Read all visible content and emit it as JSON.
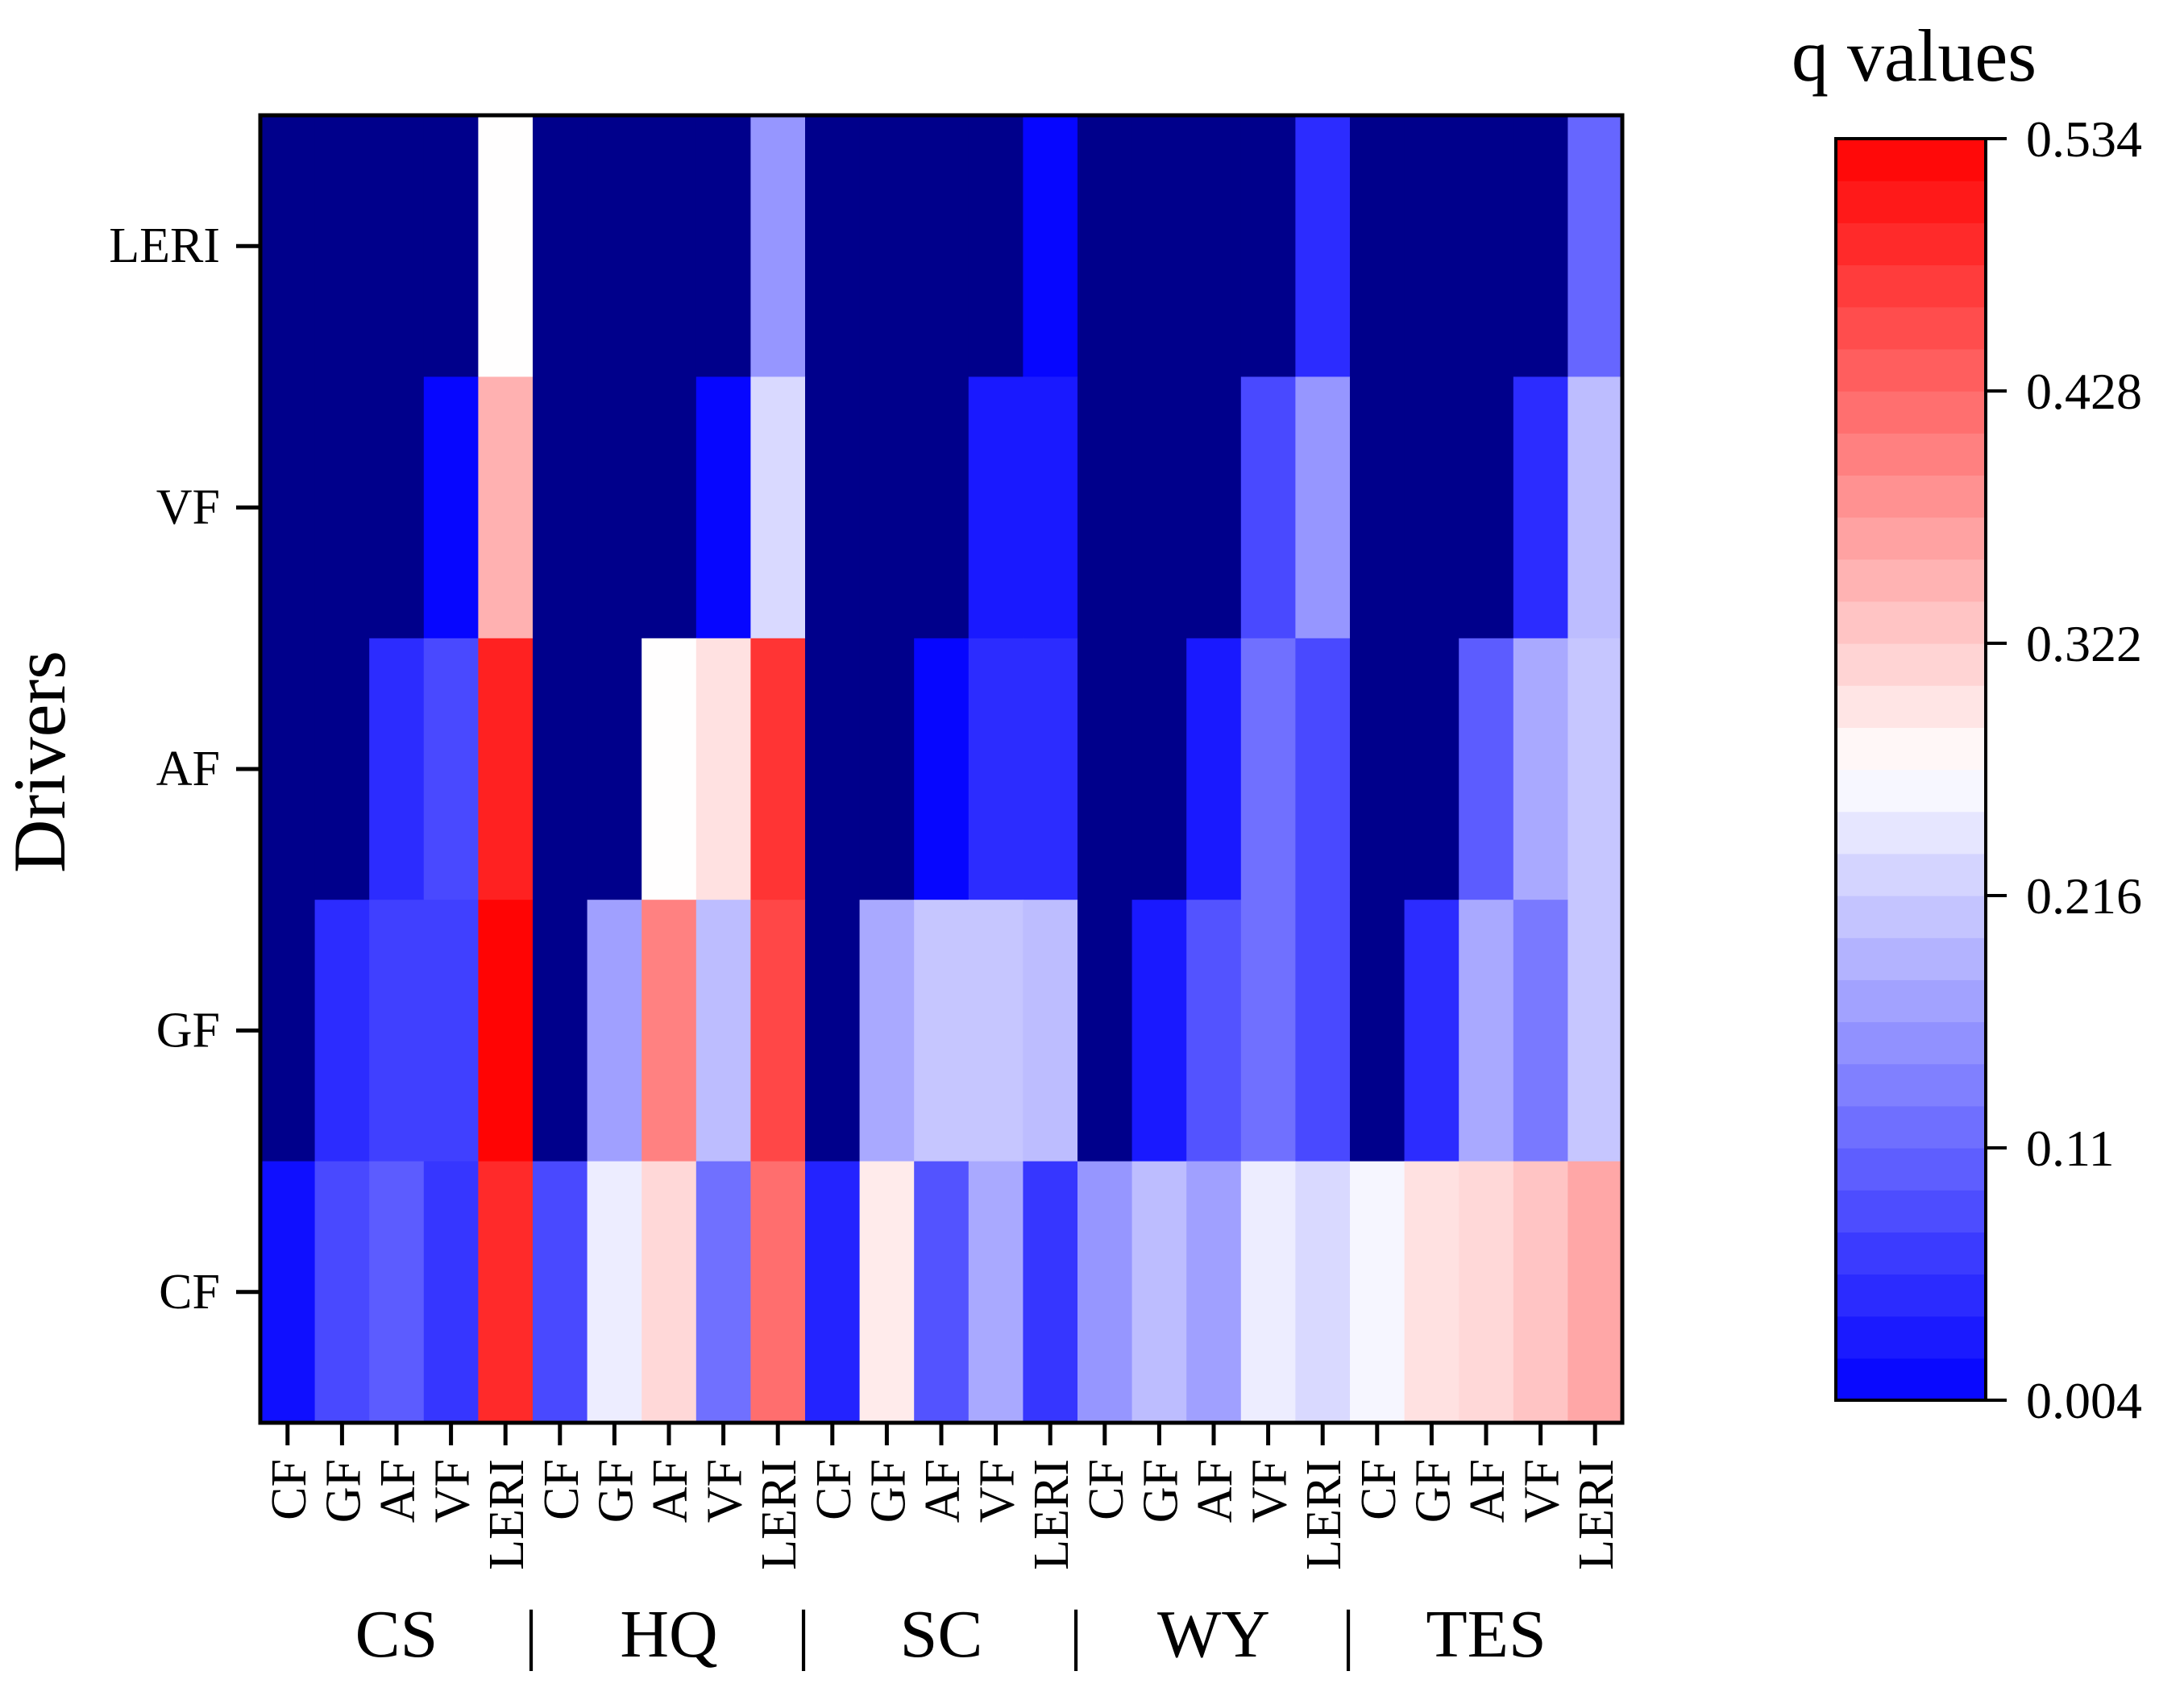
{
  "chart_data": {
    "type": "heatmap",
    "ylabel": "Drivers",
    "colorbar": {
      "title": "q values",
      "min": 0.004,
      "max": 0.534,
      "ticks": [
        "0.534",
        "0.428",
        "0.322",
        "0.216",
        "0.11",
        "0.004"
      ],
      "low_color": "#0000ff",
      "mid_color": "#ffffff",
      "high_color": "#ff0000",
      "under_color": "#00008b"
    },
    "y_categories": [
      "LERI",
      "VF",
      "AF",
      "GF",
      "CF"
    ],
    "x_groups": [
      {
        "name": "CS",
        "categories": [
          "CF",
          "GF",
          "AF",
          "VF",
          "LERI"
        ]
      },
      {
        "name": "HQ",
        "categories": [
          "CF",
          "GF",
          "AF",
          "VF",
          "LERI"
        ]
      },
      {
        "name": "SC",
        "categories": [
          "CF",
          "GF",
          "AF",
          "VF",
          "LERI"
        ]
      },
      {
        "name": "WY",
        "categories": [
          "CF",
          "GF",
          "AF",
          "VF",
          "LERI"
        ]
      },
      {
        "name": "TES",
        "categories": [
          "CF",
          "GF",
          "AF",
          "VF",
          "LERI"
        ]
      }
    ],
    "group_separator": "|",
    "values": [
      [
        null,
        null,
        null,
        null,
        0.27,
        null,
        null,
        null,
        null,
        0.16,
        null,
        null,
        null,
        null,
        0.01,
        null,
        null,
        null,
        null,
        0.05,
        null,
        null,
        null,
        null,
        0.11
      ],
      [
        null,
        null,
        null,
        0.01,
        0.35,
        null,
        null,
        null,
        0.01,
        0.23,
        null,
        null,
        null,
        0.03,
        0.03,
        null,
        null,
        null,
        0.08,
        0.16,
        null,
        null,
        null,
        0.05,
        0.2
      ],
      [
        null,
        null,
        0.05,
        0.08,
        0.5,
        null,
        null,
        0.27,
        0.3,
        0.48,
        null,
        null,
        0.01,
        0.05,
        0.05,
        null,
        null,
        0.03,
        0.12,
        0.08,
        null,
        null,
        0.1,
        0.18,
        0.21
      ],
      [
        null,
        0.05,
        0.07,
        0.07,
        0.53,
        null,
        0.17,
        0.4,
        0.2,
        0.46,
        null,
        0.18,
        0.21,
        0.21,
        0.2,
        null,
        0.03,
        0.09,
        0.12,
        0.08,
        null,
        0.05,
        0.18,
        0.13,
        0.21
      ],
      [
        0.02,
        0.08,
        0.1,
        0.06,
        0.49,
        0.08,
        0.25,
        0.31,
        0.12,
        0.42,
        0.04,
        0.29,
        0.09,
        0.18,
        0.06,
        0.16,
        0.2,
        0.17,
        0.25,
        0.23,
        0.26,
        0.3,
        0.31,
        0.33,
        0.36
      ]
    ]
  }
}
